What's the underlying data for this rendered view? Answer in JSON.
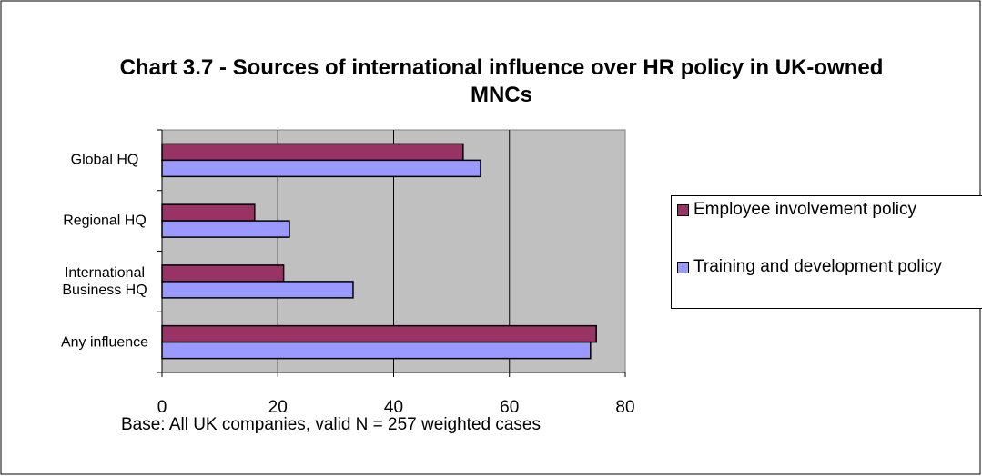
{
  "chart_data": {
    "type": "hbar",
    "title": "Chart 3.7 - Sources of international influence over HR policy in UK-owned MNCs",
    "categories": [
      "Global HQ",
      "Regional HQ",
      "International Business HQ",
      "Any influence"
    ],
    "series": [
      {
        "name": "Employee involvement policy",
        "color": "#993366",
        "values": [
          52,
          16,
          21,
          75
        ]
      },
      {
        "name": "Training and development policy",
        "color": "#9999ff",
        "values": [
          55,
          22,
          33,
          74
        ]
      }
    ],
    "xlim": [
      0,
      80
    ],
    "xticks": [
      0,
      20,
      40,
      60,
      80
    ],
    "grid": true,
    "legend": "right",
    "footnote": "Base: All UK companies, valid N = 257 weighted cases"
  }
}
